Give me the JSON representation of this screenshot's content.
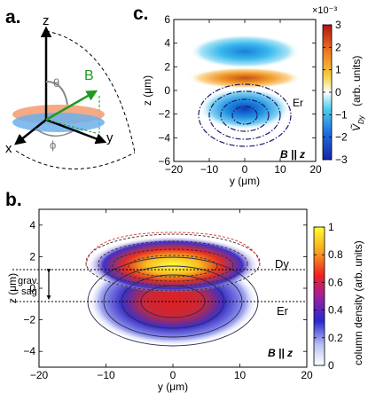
{
  "panel_labels": {
    "a": "a.",
    "b": "b.",
    "c": "c."
  },
  "panel_a": {
    "axes": {
      "z": "z",
      "x": "x",
      "y": "y"
    },
    "field_label": "B",
    "angles": {
      "theta": "θ",
      "phi": "ϕ"
    },
    "colors": {
      "field": "#1f9a1f",
      "orange_cloud": "#f08a5d",
      "blue_cloud": "#5fa8e8"
    }
  },
  "panel_c": {
    "exponent": "×10⁻³",
    "er_label": "Er",
    "field_annotation": "B || z",
    "colorbar_label": "Ṽ_Dy (arb. units)",
    "colorbar_label_main": "Ṽ",
    "colorbar_label_sub": "Dy",
    "colorbar_label_rest": "(arb. units)"
  },
  "panel_b": {
    "dy_label": "Dy",
    "er_label": "Er",
    "grav_sag_line1": "grav.",
    "grav_sag_line2": "sag",
    "field_annotation": "B || z",
    "colorbar_label": "column density (arb. units)"
  },
  "chart_data": [
    {
      "id": "panel-c",
      "type": "heatmap",
      "title": "",
      "xlabel": "y (μm)",
      "ylabel": "z (μm)",
      "xlim": [
        -20,
        20
      ],
      "ylim": [
        -6,
        6
      ],
      "xticks": [
        -20,
        -10,
        0,
        10,
        20
      ],
      "yticks": [
        -6,
        -4,
        -2,
        0,
        2,
        4,
        6
      ],
      "colorbar": {
        "label": "Ṽ_Dy (arb. units)",
        "range": [
          -3,
          3
        ],
        "ticks": [
          -3,
          -2,
          -1,
          0,
          1,
          2,
          3
        ],
        "scale_factor": "×10⁻³",
        "colormap": "cyan-blue / white / yellow-orange-red"
      },
      "features": [
        {
          "kind": "lobe",
          "sign": "negative",
          "center": [
            0,
            3.2
          ],
          "width": 22,
          "height": 1.7,
          "peak": -2.2
        },
        {
          "kind": "lobe",
          "sign": "positive",
          "center": [
            0,
            1.2
          ],
          "width": 22,
          "height": 1.3,
          "peak": 2.4
        },
        {
          "kind": "lobe",
          "sign": "negative",
          "center": [
            0,
            -0.8
          ],
          "width": 16,
          "height": 2.6,
          "peak": -2.8
        }
      ],
      "contour_label": "Er",
      "annotation": "B || z"
    },
    {
      "id": "panel-b",
      "type": "heatmap",
      "title": "",
      "xlabel": "y (μm)",
      "ylabel": "z (μm)",
      "xlim": [
        -20,
        20
      ],
      "ylim": [
        -5,
        5
      ],
      "xticks": [
        -20,
        -10,
        0,
        10,
        20
      ],
      "yticks": [
        -4,
        -2,
        0,
        2,
        4
      ],
      "colorbar": {
        "label": "column density (arb. units)",
        "range": [
          0,
          1
        ],
        "ticks": [
          0,
          0.2,
          0.4,
          0.6,
          0.8,
          1
        ],
        "colormap": "white-blue-red-yellow"
      },
      "clouds": [
        {
          "name": "Dy",
          "center": [
            0,
            1.0
          ],
          "sigma_y": 7.5,
          "sigma_z": 1.15,
          "peak": 0.95
        },
        {
          "name": "Er",
          "center": [
            0,
            -1.0
          ],
          "sigma_y": 8.0,
          "sigma_z": 1.7,
          "peak": 0.6
        }
      ],
      "dashed_lines_z": [
        1.0,
        -1.0
      ],
      "annotations": [
        "grav. sag",
        "Dy",
        "Er",
        "B || z"
      ]
    }
  ]
}
